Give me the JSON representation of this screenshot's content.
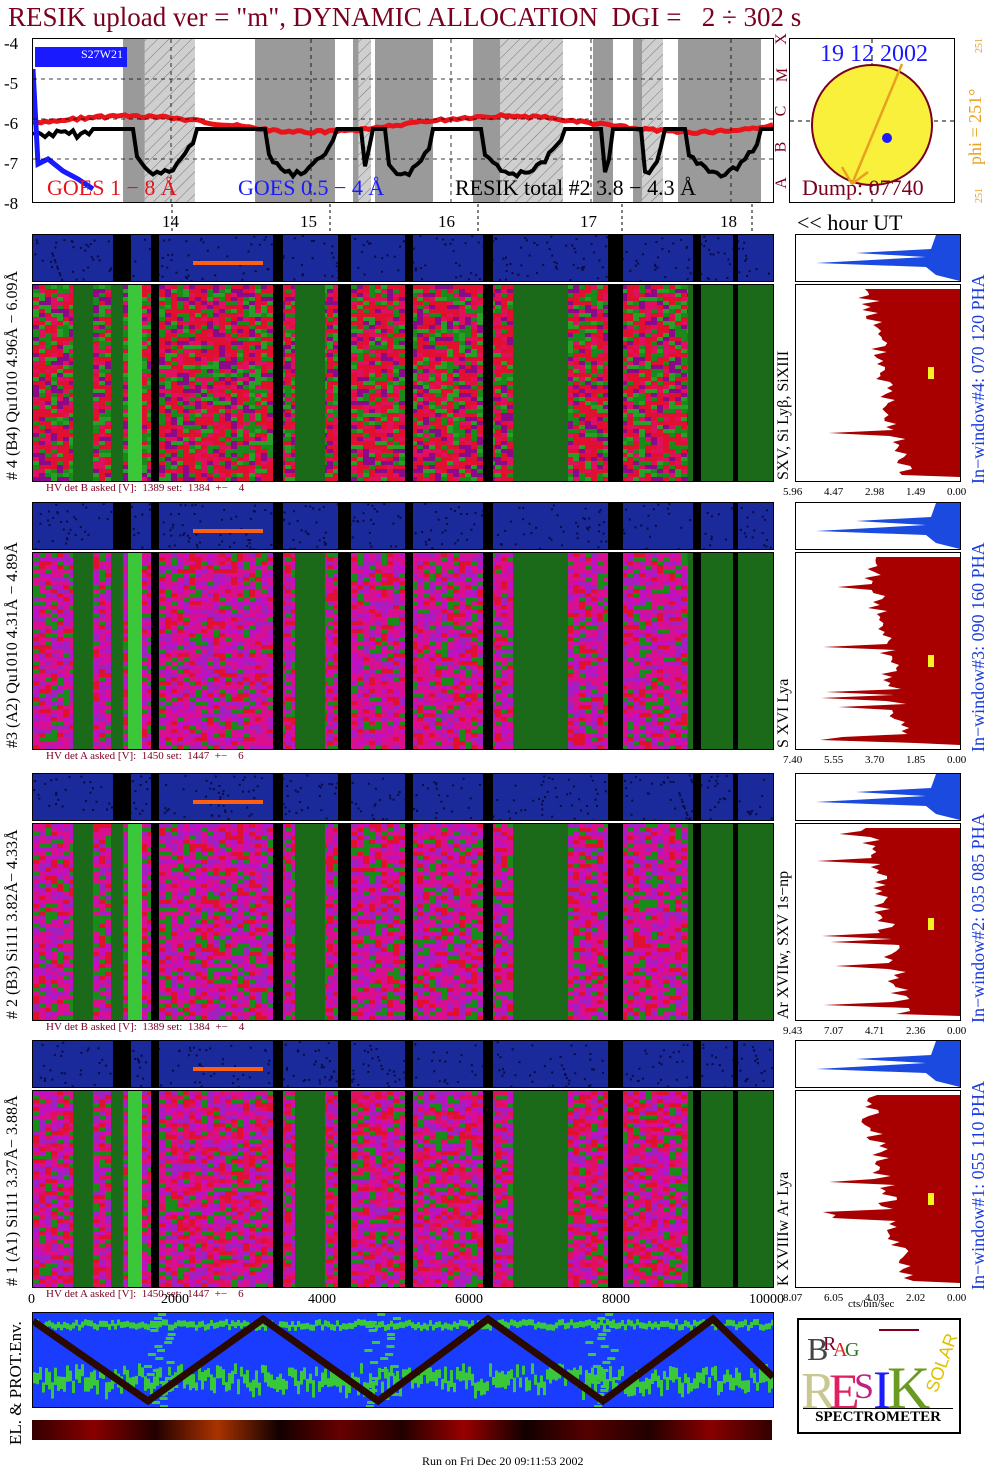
{
  "title": "RESIK upload ver = \"m\", DYNAMIC ALLOCATION  DGI =   2 ÷ 302 s",
  "goes_panel": {
    "y_ticks": [
      "-4",
      "-5",
      "-6",
      "-7",
      "-8"
    ],
    "class_labels": [
      "X",
      "M",
      "C",
      "B",
      "A"
    ],
    "legend_goes_long": "GOES 1 − 8 Å",
    "legend_goes_short": "GOES 0.5 − 4 Å",
    "legend_resik": "RESIK total #2  3.8 − 4.3 Å",
    "badge": "S27W21",
    "colors": {
      "goes_long": "#e8141a",
      "goes_short": "#1a1aff",
      "resik": "#000000"
    }
  },
  "sun_panel": {
    "date": "19 12 2002",
    "dump": "Dump: 07740",
    "phi": "phi = 251°",
    "phi_top": "251",
    "phi_bottom": "251"
  },
  "hour_axis": {
    "ticks": [
      "14",
      "15",
      "16",
      "17",
      "18"
    ],
    "unit_label": "<< hour UT"
  },
  "channels": [
    {
      "id": 4,
      "left_label": "# 4 (B4) Qu1010 4.96Å − 6.09Å",
      "line_label": "SXV, Si Lyβ, SiXIII",
      "hv": "HV det B asked [V]:  1389 set:  1384  +−    4",
      "window_label": "In−window#4:  070 120 PHA",
      "hist_ticks": [
        "5.96",
        "4.47",
        "2.98",
        "1.49",
        "0.00"
      ],
      "marker_frac": 0.42
    },
    {
      "id": 3,
      "left_label": "#3 (A2) Qu1010  4.31Å − 4.89Å",
      "line_label": "S XVI Lya",
      "hv": "HV det A asked [V]:  1450 set:  1447  +−    6",
      "window_label": "In−window#3:  090 160 PHA",
      "hist_ticks": [
        "7.40",
        "5.55",
        "3.70",
        "1.85",
        "0.00"
      ],
      "marker_frac": 0.52
    },
    {
      "id": 2,
      "left_label": "# 2 (B3) Si111  3.82Å− 4.33Å",
      "line_label": "Ar XVIIw,  SXV 1s−np",
      "hv": "HV det B asked [V]:  1389 set:  1384  +−    4",
      "window_label": "In−window#2:  035 085 PHA",
      "hist_ticks": [
        "9.43",
        "7.07",
        "4.71",
        "2.36",
        "0.00"
      ],
      "marker_frac": 0.48
    },
    {
      "id": 1,
      "left_label": "# 1 (A1) Si111  3.37Å− 3.88Å",
      "line_label": "K XVIIIw  Ar Lya",
      "hv": "HV det A asked [V]:  1450 set:  1447  +−    6",
      "window_label": "In−window#1:  055 110 PHA",
      "hist_ticks": [
        "8.07",
        "6.05",
        "4.03",
        "2.02",
        "0.00"
      ],
      "marker_frac": 0.52
    }
  ],
  "sample_axis": {
    "ticks": [
      "0",
      "2000",
      "4000",
      "6000",
      "8000",
      "10000"
    ]
  },
  "hist_unit": "cts/bin/sec",
  "env_label": "EL. & PROT.Env.",
  "footer": "Run on Fri Dec 20 09:11:53 2002",
  "logo": {
    "name": "SPECTROMETER",
    "letters": [
      "B",
      "R",
      "A",
      "G",
      "R",
      "E",
      "S",
      "I",
      "K",
      "S",
      "O",
      "L",
      "A",
      "R"
    ]
  },
  "chart_data": {
    "type": "heatmap",
    "title": "RESIK upload ver = \"m\", DYNAMIC ALLOCATION  DGI =   2 ÷ 302 s",
    "goes_ylim": [
      -8,
      -4
    ],
    "hours": [
      14,
      15,
      16,
      17,
      18
    ],
    "grid": true
  }
}
